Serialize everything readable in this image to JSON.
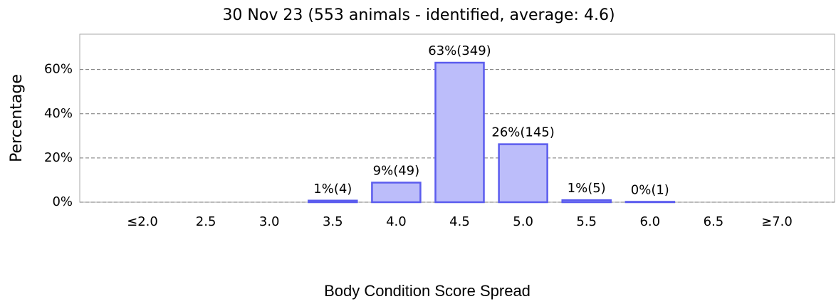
{
  "chart_data": {
    "type": "bar",
    "title": "30 Nov 23 (553 animals - identified, average: 4.6)",
    "x_label": "Body Condition Score Spread",
    "y_label": "Percentage",
    "categories": [
      "≤2.0",
      "2.5",
      "3.0",
      "3.5",
      "4.0",
      "4.5",
      "5.0",
      "5.5",
      "6.0",
      "6.5",
      "≥7.0"
    ],
    "values": [
      null,
      null,
      null,
      0.72,
      8.86,
      63.11,
      26.22,
      0.9,
      0.18,
      null,
      null
    ],
    "value_labels": [
      null,
      null,
      null,
      "1%(4)",
      "9%(49)",
      "63%(349)",
      "26%(145)",
      "1%(5)",
      "0%(1)",
      null,
      null
    ],
    "color": "#bcbdfa",
    "edge_color": "#5b5cee",
    "ylim": [
      0,
      76
    ],
    "yticks": [
      {
        "value": 0,
        "label": "0%"
      },
      {
        "value": 20,
        "label": "20%"
      },
      {
        "value": 40,
        "label": "40%"
      },
      {
        "value": 60,
        "label": "60%"
      }
    ],
    "grid": true
  }
}
